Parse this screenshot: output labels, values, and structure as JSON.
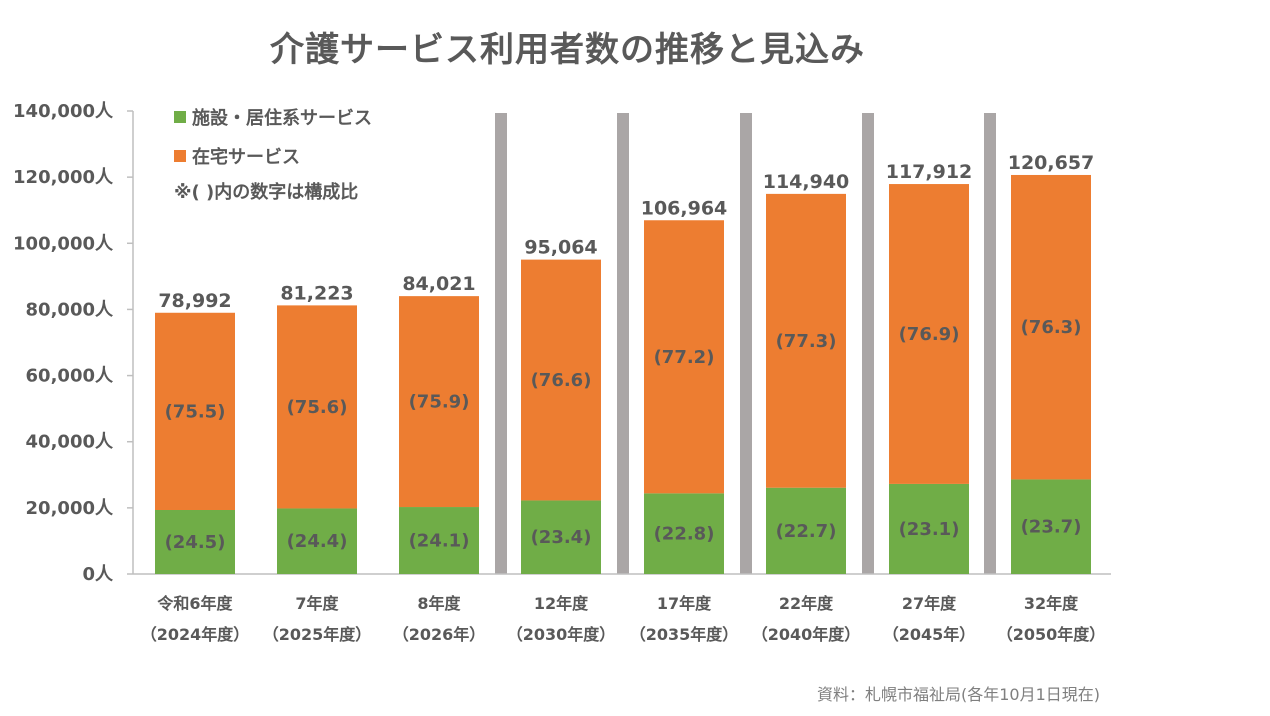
{
  "title": "介護サービス利用者数の推移と見込み",
  "source": "資料：札幌市福祉局(各年10月1日現在)",
  "note": "※( )内の数字は構成比",
  "colors": {
    "facility": "#70ad47",
    "home": "#ed7d31",
    "separator": "#aaa6a6",
    "axis": "#bfbfbf"
  },
  "chart_data": {
    "type": "bar",
    "stacked": true,
    "title": "介護サービス利用者数の推移と見込み",
    "ylim": [
      0,
      140000
    ],
    "y_ticks": [
      "0人",
      "20,000人",
      "40,000人",
      "60,000人",
      "80,000人",
      "100,000人",
      "120,000人",
      "140,000人"
    ],
    "y_tick_values": [
      0,
      20000,
      40000,
      60000,
      80000,
      100000,
      120000,
      140000
    ],
    "categories_line1": [
      "令和6年度",
      "7年度",
      "8年度",
      "12年度",
      "17年度",
      "22年度",
      "27年度",
      "32年度"
    ],
    "categories_line2": [
      "（2024年度）",
      "（2025年度）",
      "（2026年）",
      "（2030年度）",
      "（2035年度）",
      "（2040年度）",
      "（2045年）",
      "（2050年度）"
    ],
    "totals": [
      78992,
      81223,
      84021,
      95064,
      106964,
      114940,
      117912,
      120657
    ],
    "total_labels": [
      "78,992",
      "81,223",
      "84,021",
      "95,064",
      "106,964",
      "114,940",
      "117,912",
      "120,657"
    ],
    "series": [
      {
        "name": "施設・居住系サービス",
        "values": [
          19353,
          19819,
          20249,
          22245,
          24388,
          26091,
          27238,
          28596
        ],
        "labels": [
          "(24.5)",
          "(24.4)",
          "(24.1)",
          "(23.4)",
          "(22.8)",
          "(22.7)",
          "(23.1)",
          "(23.7)"
        ]
      },
      {
        "name": "在宅サービス",
        "values": [
          59639,
          61404,
          63772,
          72819,
          82576,
          88849,
          90674,
          92061
        ],
        "labels": [
          "(75.5)",
          "(75.6)",
          "(75.9)",
          "(76.6)",
          "(77.2)",
          "(77.3)",
          "(76.9)",
          "(76.3)"
        ]
      }
    ]
  }
}
